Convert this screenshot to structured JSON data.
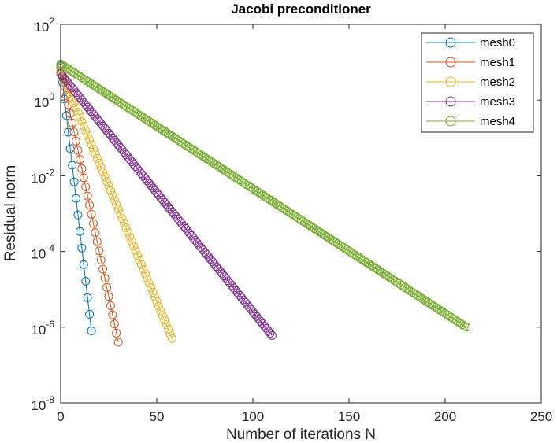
{
  "chart_data": {
    "type": "line",
    "title": "Jacobi preconditioner",
    "xlabel": "Number of iterations N",
    "ylabel": "Residual norm",
    "xlim": [
      0,
      250
    ],
    "ylim": [
      1e-08,
      100
    ],
    "yscale": "log",
    "xticks": [
      "0",
      "50",
      "100",
      "150",
      "200",
      "250"
    ],
    "yticks": [
      {
        "base": "10",
        "exp": "2",
        "value": 100
      },
      {
        "base": "10",
        "exp": "0",
        "value": 1
      },
      {
        "base": "10",
        "exp": "-2",
        "value": 0.01
      },
      {
        "base": "10",
        "exp": "-4",
        "value": 0.0001
      },
      {
        "base": "10",
        "exp": "-6",
        "value": 1e-06
      },
      {
        "base": "10",
        "exp": "-8",
        "value": 1e-08
      }
    ],
    "marker": "circle",
    "grid": false,
    "legend_position": "top-right",
    "series": [
      {
        "name": "mesh0",
        "color": "#0072BD",
        "start_value": 8.0,
        "final_iteration": 16,
        "final_value": 8e-07
      },
      {
        "name": "mesh1",
        "color": "#D95319",
        "start_value": 7.0,
        "final_iteration": 30,
        "final_value": 4e-07
      },
      {
        "name": "mesh2",
        "color": "#EDB120",
        "start_value": 6.0,
        "final_iteration": 58,
        "final_value": 5e-07
      },
      {
        "name": "mesh3",
        "color": "#7E2F8E",
        "start_value": 5.0,
        "final_iteration": 110,
        "final_value": 6e-07
      },
      {
        "name": "mesh4",
        "color": "#77AC30",
        "start_value": 9.0,
        "final_iteration": 211,
        "final_value": 1e-06
      }
    ]
  }
}
